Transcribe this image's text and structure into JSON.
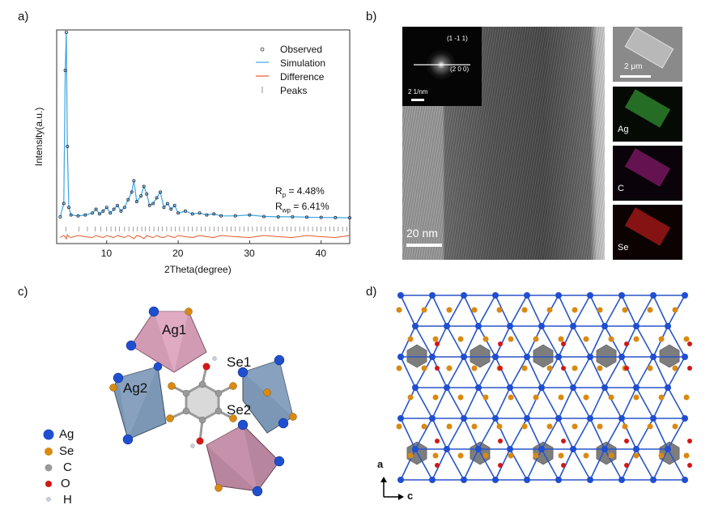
{
  "panels": {
    "a": {
      "label": "a)"
    },
    "b": {
      "label": "b)"
    },
    "c": {
      "label": "c)"
    },
    "d": {
      "label": "d)"
    }
  },
  "chart_data": {
    "type": "line",
    "xlabel": "2Theta(degree)",
    "ylabel": "Intensity(a.u.)",
    "xlim": [
      3,
      44
    ],
    "xticks": [
      10,
      20,
      30,
      40
    ],
    "legend_position": "top-right",
    "series": [
      {
        "name": "Observed",
        "color": "#1c2a40",
        "style": "circles",
        "x": [
          3.5,
          4.0,
          4.2,
          4.35,
          4.5,
          4.7,
          5,
          6,
          7,
          8,
          8.5,
          9,
          9.5,
          10,
          10.5,
          11,
          11.5,
          12,
          12.5,
          13,
          13.5,
          13.8,
          14.2,
          14.8,
          15.2,
          15.6,
          16,
          16.5,
          17,
          17.5,
          18,
          18.5,
          19,
          19.5,
          20,
          21,
          22,
          23,
          24,
          25,
          26,
          28,
          30,
          32,
          34,
          36,
          38,
          40,
          42,
          44
        ],
        "y": [
          3,
          10,
          80,
          100,
          40,
          8,
          4,
          3.5,
          4,
          5,
          7,
          4.5,
          6,
          8,
          5,
          7,
          9,
          6,
          8,
          12,
          16,
          22,
          11,
          14,
          19,
          15,
          9,
          10,
          13,
          16,
          8,
          10,
          7,
          9,
          5,
          6,
          4.5,
          5,
          4,
          4.5,
          3.5,
          3.5,
          4,
          3.2,
          3,
          3,
          2.8,
          2.7,
          2.6,
          2.5
        ]
      },
      {
        "name": "Simulation",
        "color": "#3da4e0",
        "style": "line"
      },
      {
        "name": "Difference",
        "color": "#e25a2b",
        "style": "line"
      },
      {
        "name": "Peaks",
        "color": "#555555",
        "style": "ticks",
        "x": [
          4.3,
          6.1,
          7.3,
          8.4,
          9.2,
          10.0,
          10.6,
          11.2,
          11.8,
          12.5,
          13.1,
          13.7,
          14.3,
          14.9,
          15.4,
          16.0,
          16.6,
          17.2,
          17.8,
          18.4,
          19.0,
          19.6,
          20.2,
          20.8,
          21.4,
          22.0,
          22.6,
          23.2,
          23.8,
          24.4,
          25.0,
          25.6,
          26.2,
          26.8,
          27.4,
          28.0,
          28.6,
          29.2,
          29.8,
          30.4,
          31.0,
          31.6,
          32.2,
          32.8,
          33.4,
          34.0,
          34.6,
          35.2,
          35.8,
          36.4,
          37.0,
          37.6,
          38.2,
          38.8,
          39.4,
          40.0,
          40.6,
          41.2,
          41.8,
          42.4,
          43.0,
          43.6
        ]
      }
    ],
    "annotations": {
      "rp": {
        "sym": "R",
        "sub": "p",
        "text": " = 4.48%"
      },
      "rwp": {
        "sym": "R",
        "sub": "wp",
        "text": " = 6.41%"
      }
    }
  },
  "tem": {
    "scale_main": "20 nm",
    "fft_labels": [
      "(1 -1 1)",
      "(2 0 0)"
    ],
    "fft_scale": "2 1/nm",
    "sem_scale": "2 μm",
    "maps": [
      {
        "label": "Ag",
        "color": "#3fbf3f"
      },
      {
        "label": "C",
        "color": "#b0208a"
      },
      {
        "label": "Se",
        "color": "#d62020"
      }
    ]
  },
  "structure_c": {
    "labels": [
      "Ag1",
      "Se1",
      "Ag2",
      "Se2"
    ],
    "legend": [
      {
        "label": "Ag",
        "color": "#1f4fd0"
      },
      {
        "label": "Se",
        "color": "#d98a12"
      },
      {
        "label": "C",
        "color": "#9a9a9a"
      },
      {
        "label": "O",
        "color": "#d01818"
      },
      {
        "label": "H",
        "color": "#a9b8c8"
      }
    ]
  },
  "structure_d": {
    "axis_a": "a",
    "axis_c": "c"
  }
}
